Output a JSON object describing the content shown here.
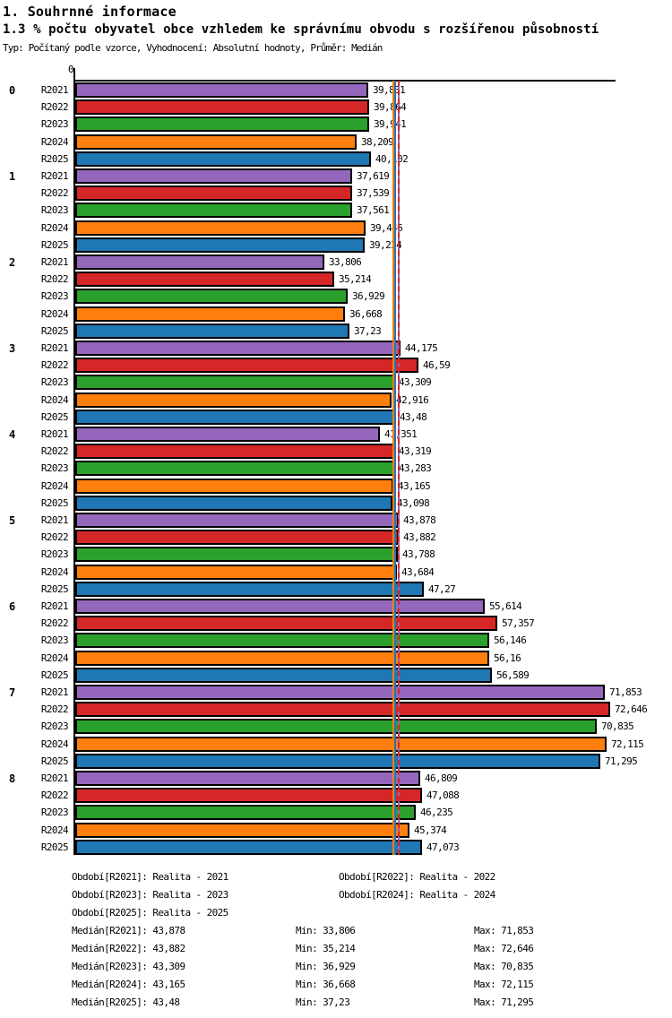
{
  "header": {
    "title": "1. Souhrnné informace",
    "subtitle": "1.3 % počtu obyvatel obce vzhledem ke správnímu obvodu s rozšířenou působností",
    "meta": "Typ: Počítaný podle vzorce, Vyhodnocení: Absolutní hodnoty, Průměr: Medián"
  },
  "chart_data": {
    "type": "bar",
    "orientation": "horizontal",
    "origin_tick_label": "0",
    "xlim": [
      0,
      73.5
    ],
    "grid": false,
    "decimal_separator": ",",
    "categories": [
      "0",
      "1",
      "2",
      "3",
      "4",
      "5",
      "6",
      "7",
      "8"
    ],
    "series": [
      {
        "name": "R2021",
        "color": "#9467bd",
        "values": [
          39.831,
          37.619,
          33.806,
          44.175,
          41.351,
          43.878,
          55.614,
          71.853,
          46.809
        ]
      },
      {
        "name": "R2022",
        "color": "#d62728",
        "values": [
          39.864,
          37.539,
          35.214,
          46.59,
          43.319,
          43.882,
          57.357,
          72.646,
          47.088
        ]
      },
      {
        "name": "R2023",
        "color": "#2ca02c",
        "values": [
          39.941,
          37.561,
          36.929,
          43.309,
          43.283,
          43.788,
          56.146,
          70.835,
          46.235
        ]
      },
      {
        "name": "R2024",
        "color": "#ff7f0e",
        "values": [
          38.209,
          39.446,
          36.668,
          42.916,
          43.165,
          43.684,
          56.16,
          72.115,
          45.374
        ]
      },
      {
        "name": "R2025",
        "color": "#1f77b4",
        "values": [
          40.102,
          39.234,
          37.23,
          43.48,
          43.098,
          47.27,
          56.589,
          71.295,
          47.073
        ]
      }
    ],
    "median_lines": [
      {
        "name": "R2021",
        "value": 43.878,
        "color": "#9467bd",
        "dashed": false
      },
      {
        "name": "R2022",
        "value": 43.882,
        "color": "#d62728",
        "dashed": true
      },
      {
        "name": "R2023",
        "value": 43.309,
        "color": "#2ca02c",
        "dashed": false
      },
      {
        "name": "R2024",
        "value": 43.165,
        "color": "#ff7f0e",
        "dashed": false
      },
      {
        "name": "R2025",
        "value": 43.48,
        "color": "#1f77b4",
        "dashed": false
      }
    ]
  },
  "legend": {
    "items": [
      "Období[R2021]: Realita - 2021",
      "Období[R2022]: Realita - 2022",
      "Období[R2023]: Realita - 2023",
      "Období[R2024]: Realita - 2024",
      "Období[R2025]: Realita - 2025"
    ]
  },
  "stats": {
    "rows": [
      {
        "median": "Medián[R2021]: 43,878",
        "min": "Min: 33,806",
        "max": "Max: 71,853"
      },
      {
        "median": "Medián[R2022]: 43,882",
        "min": "Min: 35,214",
        "max": "Max: 72,646"
      },
      {
        "median": "Medián[R2023]: 43,309",
        "min": "Min: 36,929",
        "max": "Max: 70,835"
      },
      {
        "median": "Medián[R2024]: 43,165",
        "min": "Min: 36,668",
        "max": "Max: 72,115"
      },
      {
        "median": "Medián[R2025]: 43,48",
        "min": "Min: 37,23",
        "max": "Max: 71,295"
      }
    ]
  }
}
